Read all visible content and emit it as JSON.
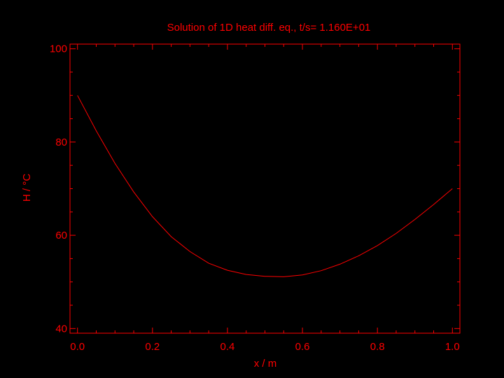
{
  "chart_data": {
    "type": "line",
    "title": "Solution of 1D heat diff. eq., t/s=  1.160E+01",
    "xlabel": "x / m",
    "ylabel": "H / °C",
    "xlim": [
      -0.02,
      1.02
    ],
    "ylim": [
      39,
      101
    ],
    "xticks": [
      0.0,
      0.2,
      0.4,
      0.6,
      0.8,
      1.0
    ],
    "xtick_labels": [
      "0.0",
      "0.2",
      "0.4",
      "0.6",
      "0.8",
      "1.0"
    ],
    "yticks": [
      40,
      60,
      80,
      100
    ],
    "ytick_labels": [
      "40",
      "60",
      "80",
      "100"
    ],
    "grid": false,
    "color": "#ff0000",
    "background": "#000000",
    "series": [
      {
        "x": [
          0.0,
          0.05,
          0.1,
          0.15,
          0.2,
          0.25,
          0.3,
          0.35,
          0.4,
          0.45,
          0.5,
          0.55,
          0.6,
          0.65,
          0.7,
          0.75,
          0.8,
          0.85,
          0.9,
          0.95,
          1.0
        ],
        "values": [
          90.0,
          82.4,
          75.4,
          69.3,
          64.0,
          59.7,
          56.5,
          54.0,
          52.5,
          51.6,
          51.2,
          51.1,
          51.5,
          52.4,
          53.8,
          55.6,
          57.8,
          60.4,
          63.4,
          66.6,
          70.0
        ]
      }
    ]
  }
}
